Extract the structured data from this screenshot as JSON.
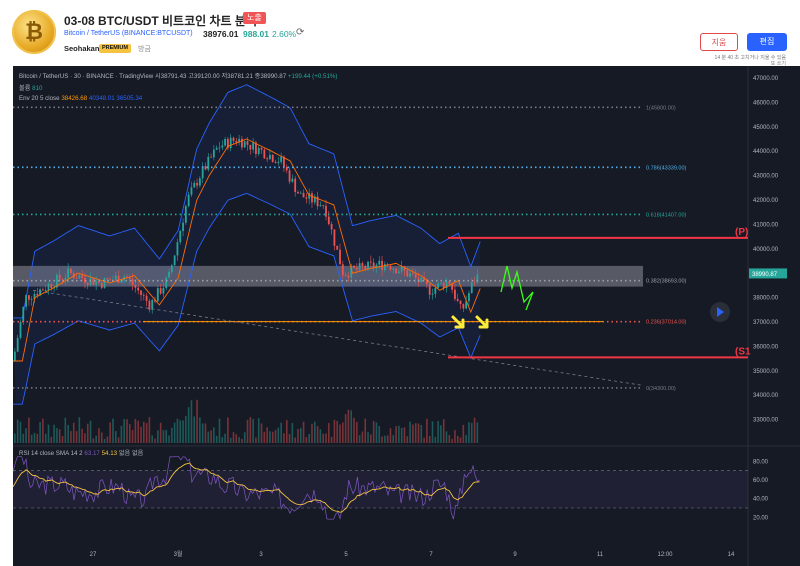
{
  "header": {
    "logo_glyph": "₿",
    "title": "03-08 BTC/USDT 비트코인 차트 분석",
    "badge": "노출",
    "symbol_line": "Bitcoin / TetherUS (BINANCE:BTCUSDT)",
    "price": "38976.01",
    "change": "988.01",
    "change_pct": "2.60%",
    "author": "Seohakant",
    "author_badge": "PREMIUM",
    "time": "방금",
    "delete_label": "지움",
    "edit_label": "편집",
    "note_line1": "14 분 40 초 고치거나 지울 수 있음",
    "note_line2": "또 쓰기",
    "colors": {
      "accent": "#2962ff",
      "delete": "#e04a4a",
      "up": "#26a69a",
      "down": "#ef5350"
    }
  },
  "chart_data": {
    "type": "candlestick",
    "title": "Bitcoin / TetherUS · 30 · BINANCE · TradingView",
    "ohlc_legend": {
      "open": "시38791.43",
      "high": "고39120.00",
      "low": "저38781.21",
      "close": "종38990.87",
      "change": "+199.44 (+0.51%)"
    },
    "volume_legend": {
      "label": "볼륨",
      "value": "810"
    },
    "envelope_legend": {
      "label": "Env 20 5 close",
      "basis": "38426.68",
      "upper": "40348.01",
      "lower": "36505.34"
    },
    "rsi_legend": {
      "label": "RSI 14 close SMA 14 2",
      "rsi": "63.17",
      "sma": "54.13",
      "extra1": "없음",
      "extra2": "없음"
    },
    "price_axis": {
      "min": 32000,
      "max": 47000,
      "ticks": [
        "47000.00",
        "46000.00",
        "45000.00",
        "44000.00",
        "43000.00",
        "42000.00",
        "41000.00",
        "40000.00",
        "39000.00",
        "38000.00",
        "37000.00",
        "36000.00",
        "35000.00",
        "34000.00",
        "33000.00"
      ],
      "tick_values": [
        47000,
        46000,
        45000,
        44000,
        43000,
        42000,
        41000,
        40000,
        39000,
        38000,
        37000,
        36000,
        35000,
        34000,
        33000
      ]
    },
    "last_price_label": "38990.87",
    "rsi_axis": {
      "ticks": [
        "80.00",
        "60.00",
        "40.00",
        "20.00"
      ],
      "tick_values": [
        80,
        60,
        40,
        20
      ],
      "upper_band": 70,
      "lower_band": 30
    },
    "time_axis": {
      "labels": [
        "27",
        "3월",
        "3",
        "5",
        "7",
        "9",
        "11",
        "12:00",
        "14"
      ]
    },
    "fib_levels": [
      {
        "label": "1(45800.00)",
        "price": 45800,
        "color": "#787b86"
      },
      {
        "label": "0.786(43339.00)",
        "price": 43339,
        "color": "#4fb0e8"
      },
      {
        "label": "0.618(41407.00)",
        "price": 41407,
        "color": "#26a69a"
      },
      {
        "label": "0.382(38693.00)",
        "price": 38693,
        "color": "#9aa0a6"
      },
      {
        "label": "0.236(37014.00)",
        "price": 37014,
        "color": "#ef5350"
      },
      {
        "label": "0(34300.00)",
        "price": 34300,
        "color": "#787b86"
      }
    ],
    "levels": [
      {
        "label": "(P)",
        "price": 40450,
        "color": "#f23645"
      },
      {
        "label": "(S1",
        "price": 35550,
        "color": "#f23645"
      }
    ],
    "price_series": [
      {
        "t": 0,
        "p": 35400
      },
      {
        "t": 2,
        "p": 38000
      },
      {
        "t": 5,
        "p": 38400
      },
      {
        "t": 9,
        "p": 39000
      },
      {
        "t": 14,
        "p": 38600
      },
      {
        "t": 18,
        "p": 38900
      },
      {
        "t": 22,
        "p": 37700
      },
      {
        "t": 25,
        "p": 38800
      },
      {
        "t": 28,
        "p": 42000
      },
      {
        "t": 30,
        "p": 43000
      },
      {
        "t": 33,
        "p": 44200
      },
      {
        "t": 36,
        "p": 44500
      },
      {
        "t": 40,
        "p": 44000
      },
      {
        "t": 43,
        "p": 43600
      },
      {
        "t": 46,
        "p": 42200
      },
      {
        "t": 50,
        "p": 41800
      },
      {
        "t": 53,
        "p": 39000
      },
      {
        "t": 56,
        "p": 39200
      },
      {
        "t": 60,
        "p": 39400
      },
      {
        "t": 64,
        "p": 38900
      },
      {
        "t": 67,
        "p": 38300
      },
      {
        "t": 70,
        "p": 38700
      },
      {
        "t": 72,
        "p": 37400
      },
      {
        "t": 74,
        "p": 38700
      },
      {
        "t": 75,
        "p": 38990
      }
    ]
  }
}
